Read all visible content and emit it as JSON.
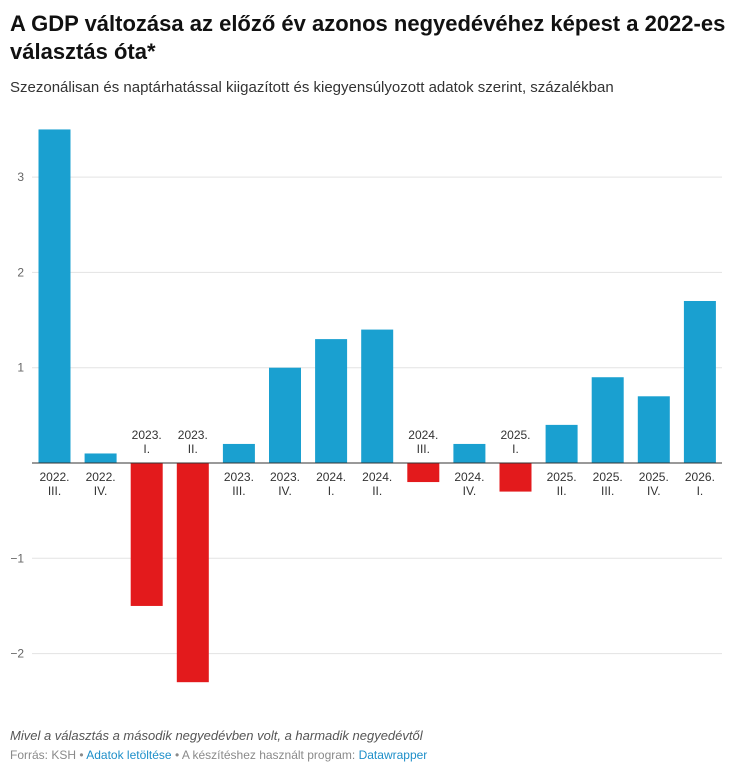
{
  "header": {
    "title": "A GDP változása az előző év azonos negyedévéhez képest a 2022-es választás óta*",
    "subtitle": "Szezonálisan és naptárhatással kiigazított és kiegyensúlyozott adatok szerint, százalékban"
  },
  "footer": {
    "note": "Mivel a választás a második negyedévben volt, a harmadik negyedévtől",
    "source_prefix": "Forrás: KSH •",
    "download_link": "Adatok letöltése",
    "tool_text": "• A készítéshez használt program:",
    "tool_link": "Datawrapper"
  },
  "colors": {
    "positive": "#1aa0d0",
    "negative": "#e31a1c"
  },
  "chart_data": {
    "type": "bar",
    "title": "A GDP változása az előző év azonos negyedévéhez képest a 2022-es választás óta*",
    "subtitle": "Szezonálisan és naptárhatással kiigazított és kiegyensúlyozott adatok szerint, százalékban",
    "categories": [
      [
        "2022.",
        "III."
      ],
      [
        "2022.",
        "IV."
      ],
      [
        "2023.",
        "I."
      ],
      [
        "2023.",
        "II."
      ],
      [
        "2023.",
        "III."
      ],
      [
        "2023.",
        "IV."
      ],
      [
        "2024.",
        "I."
      ],
      [
        "2024.",
        "II."
      ],
      [
        "2024.",
        "III."
      ],
      [
        "2024.",
        "IV."
      ],
      [
        "2025.",
        "I."
      ],
      [
        "2025.",
        "II."
      ],
      [
        "2025.",
        "III."
      ],
      [
        "2025.",
        "IV."
      ],
      [
        "2026.",
        "I."
      ]
    ],
    "values": [
      3.5,
      0.1,
      -1.5,
      -2.3,
      0.2,
      1.0,
      1.3,
      1.4,
      -0.2,
      0.2,
      -0.3,
      0.4,
      0.9,
      0.7,
      1.7
    ],
    "yticks": [
      -2,
      -1,
      1,
      2,
      3
    ],
    "ytick_labels": [
      "−2",
      "−1",
      "1",
      "2",
      "3"
    ],
    "ylim": [
      -2.5,
      3.6
    ],
    "grid": true,
    "legend": "none"
  }
}
